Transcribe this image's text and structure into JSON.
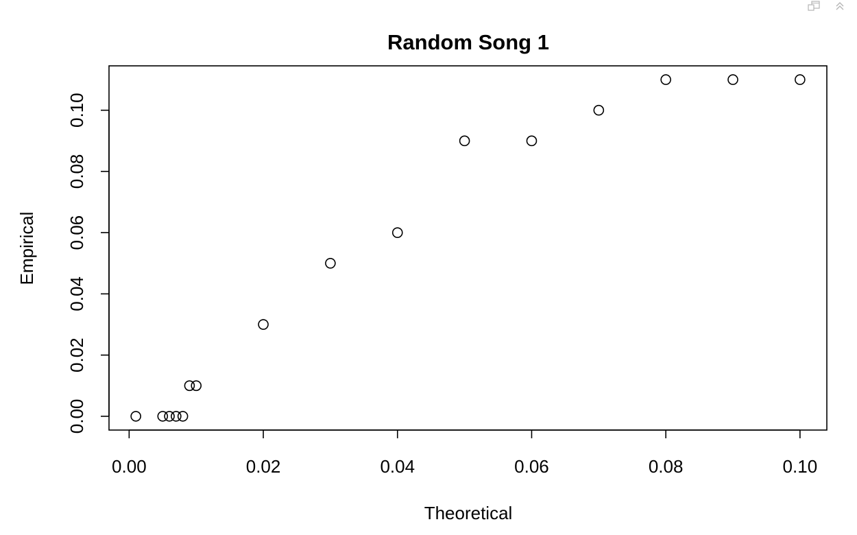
{
  "toolbar": {
    "icons": [
      "show-in-new-window-icon",
      "collapse-output-icon"
    ]
  },
  "chart_data": {
    "type": "scatter",
    "title": "Random Song 1",
    "xlabel": "Theoretical",
    "ylabel": "Empirical",
    "xlim": [
      -0.003,
      0.104
    ],
    "ylim": [
      -0.0045,
      0.1145
    ],
    "x_ticks": [
      0.0,
      0.02,
      0.04,
      0.06,
      0.08,
      0.1
    ],
    "x_tick_labels": [
      "0.00",
      "0.02",
      "0.04",
      "0.06",
      "0.08",
      "0.10"
    ],
    "y_ticks": [
      0.0,
      0.02,
      0.04,
      0.06,
      0.08,
      0.1
    ],
    "y_tick_labels": [
      "0.00",
      "0.02",
      "0.04",
      "0.06",
      "0.08",
      "0.10"
    ],
    "grid": false,
    "marker": "open-circle",
    "point_color": "#000000",
    "points": [
      {
        "x": 0.001,
        "y": 0.0
      },
      {
        "x": 0.005,
        "y": 0.0
      },
      {
        "x": 0.006,
        "y": 0.0
      },
      {
        "x": 0.007,
        "y": 0.0
      },
      {
        "x": 0.008,
        "y": 0.0
      },
      {
        "x": 0.009,
        "y": 0.01
      },
      {
        "x": 0.01,
        "y": 0.01
      },
      {
        "x": 0.02,
        "y": 0.03
      },
      {
        "x": 0.03,
        "y": 0.05
      },
      {
        "x": 0.04,
        "y": 0.06
      },
      {
        "x": 0.05,
        "y": 0.09
      },
      {
        "x": 0.06,
        "y": 0.09
      },
      {
        "x": 0.07,
        "y": 0.1
      },
      {
        "x": 0.08,
        "y": 0.11
      },
      {
        "x": 0.09,
        "y": 0.11
      },
      {
        "x": 0.1,
        "y": 0.11
      }
    ]
  }
}
